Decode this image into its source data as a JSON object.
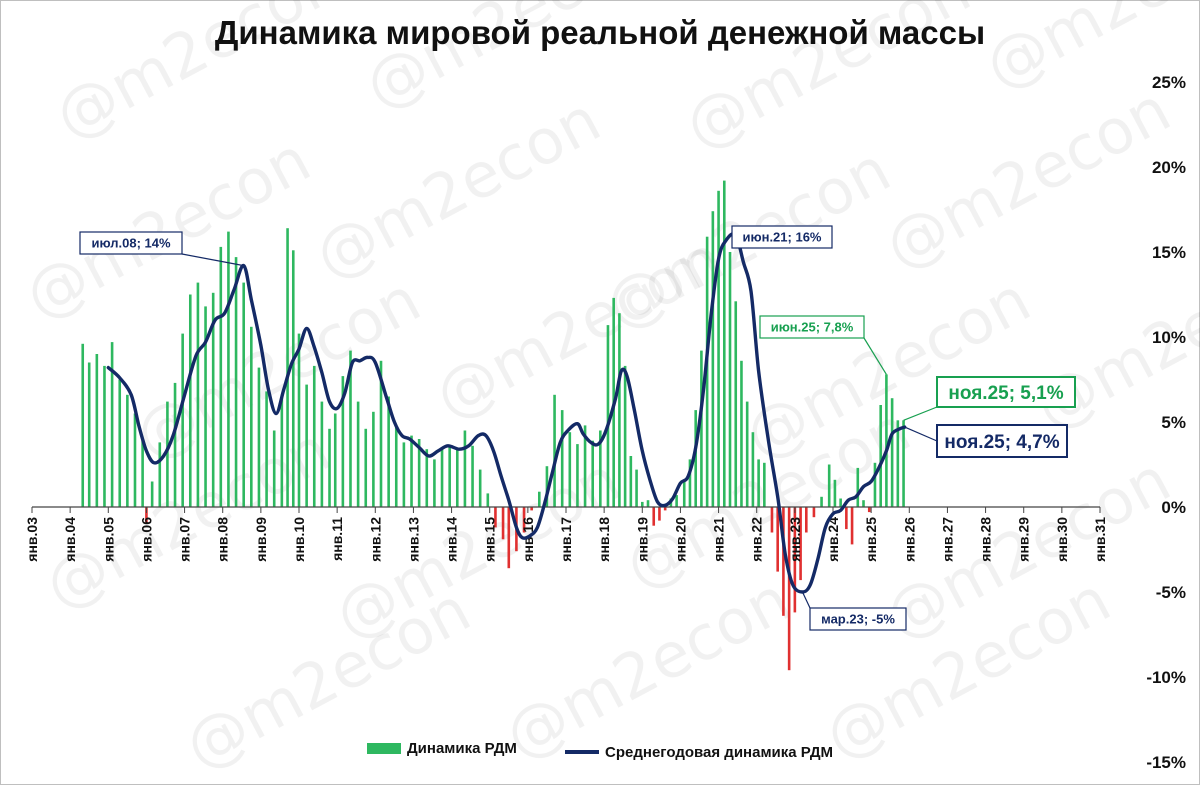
{
  "title": "Динамика мировой реальной денежной массы",
  "watermark": "@m2econ",
  "colors": {
    "bar_positive": "#2eb860",
    "bar_negative": "#e03030",
    "line": "#142a66",
    "callout_green": "#18a050",
    "callout_blue": "#142a66"
  },
  "legend": {
    "bars": "Динамика РДМ",
    "line": "Среднегодовая динамика РДМ"
  },
  "chart_data": {
    "type": "bar",
    "x_ticks": [
      "янв.03",
      "янв.04",
      "янв.05",
      "янв.06",
      "янв.07",
      "янв.08",
      "янв.09",
      "янв.10",
      "янв.11",
      "янв.12",
      "янв.13",
      "янв.14",
      "янв.15",
      "янв.16",
      "янв.17",
      "янв.18",
      "янв.19",
      "янв.20",
      "янв.21",
      "янв.22",
      "янв.23",
      "янв.24",
      "янв.25",
      "янв.26",
      "янв.27",
      "янв.28",
      "янв.29",
      "янв.30",
      "янв.31"
    ],
    "y_ticks": [
      "25%",
      "20%",
      "15%",
      "10%",
      "5%",
      "0%",
      "-5%",
      "-10%",
      "-15%"
    ],
    "ylim": [
      -15,
      25
    ],
    "y_axis_position": "right",
    "series": [
      {
        "name": "Динамика РДМ",
        "type": "bar",
        "points": [
          [
            2004.33,
            9.6
          ],
          [
            2004.5,
            8.5
          ],
          [
            2004.7,
            9.0
          ],
          [
            2004.9,
            8.3
          ],
          [
            2005.1,
            9.7
          ],
          [
            2005.3,
            7.5
          ],
          [
            2005.5,
            6.6
          ],
          [
            2005.7,
            5.5
          ],
          [
            2005.9,
            3.9
          ],
          [
            2006.0,
            -1.0
          ],
          [
            2006.15,
            1.5
          ],
          [
            2006.35,
            3.8
          ],
          [
            2006.55,
            6.2
          ],
          [
            2006.75,
            7.3
          ],
          [
            2006.95,
            10.2
          ],
          [
            2007.15,
            12.5
          ],
          [
            2007.35,
            13.2
          ],
          [
            2007.55,
            11.8
          ],
          [
            2007.75,
            12.6
          ],
          [
            2007.95,
            15.3
          ],
          [
            2008.15,
            16.2
          ],
          [
            2008.35,
            14.7
          ],
          [
            2008.55,
            13.2
          ],
          [
            2008.75,
            10.6
          ],
          [
            2008.95,
            8.2
          ],
          [
            2009.15,
            6.8
          ],
          [
            2009.35,
            4.5
          ],
          [
            2009.55,
            6.6
          ],
          [
            2009.7,
            16.4
          ],
          [
            2009.85,
            15.1
          ],
          [
            2010.0,
            10.2
          ],
          [
            2010.2,
            7.2
          ],
          [
            2010.4,
            8.3
          ],
          [
            2010.6,
            6.2
          ],
          [
            2010.8,
            4.6
          ],
          [
            2010.95,
            5.5
          ],
          [
            2011.15,
            7.7
          ],
          [
            2011.35,
            9.2
          ],
          [
            2011.55,
            6.2
          ],
          [
            2011.75,
            4.6
          ],
          [
            2011.95,
            5.6
          ],
          [
            2012.15,
            8.6
          ],
          [
            2012.35,
            6.5
          ],
          [
            2012.55,
            4.7
          ],
          [
            2012.75,
            3.8
          ],
          [
            2012.95,
            4.2
          ],
          [
            2013.15,
            4.0
          ],
          [
            2013.35,
            3.4
          ],
          [
            2013.55,
            2.8
          ],
          [
            2013.75,
            3.4
          ],
          [
            2013.95,
            3.6
          ],
          [
            2014.15,
            3.5
          ],
          [
            2014.35,
            4.5
          ],
          [
            2014.55,
            3.6
          ],
          [
            2014.75,
            2.2
          ],
          [
            2014.95,
            0.8
          ],
          [
            2015.15,
            -1.2
          ],
          [
            2015.35,
            -1.9
          ],
          [
            2015.5,
            -3.6
          ],
          [
            2015.7,
            -2.6
          ],
          [
            2015.9,
            -1.5
          ],
          [
            2016.1,
            -0.2
          ],
          [
            2016.3,
            0.9
          ],
          [
            2016.5,
            2.4
          ],
          [
            2016.7,
            6.6
          ],
          [
            2016.9,
            5.7
          ],
          [
            2017.1,
            4.4
          ],
          [
            2017.3,
            3.7
          ],
          [
            2017.5,
            4.8
          ],
          [
            2017.7,
            3.9
          ],
          [
            2017.9,
            4.5
          ],
          [
            2018.1,
            10.7
          ],
          [
            2018.25,
            12.3
          ],
          [
            2018.4,
            11.4
          ],
          [
            2018.55,
            8.3
          ],
          [
            2018.7,
            3.0
          ],
          [
            2018.85,
            2.2
          ],
          [
            2019.0,
            0.3
          ],
          [
            2019.15,
            0.4
          ],
          [
            2019.3,
            -1.1
          ],
          [
            2019.45,
            -0.8
          ],
          [
            2019.6,
            -0.2
          ],
          [
            2019.75,
            0.5
          ],
          [
            2019.9,
            0.7
          ],
          [
            2020.1,
            1.5
          ],
          [
            2020.25,
            2.8
          ],
          [
            2020.4,
            5.7
          ],
          [
            2020.55,
            9.2
          ],
          [
            2020.7,
            15.9
          ],
          [
            2020.85,
            17.4
          ],
          [
            2021.0,
            18.6
          ],
          [
            2021.15,
            19.2
          ],
          [
            2021.3,
            15.0
          ],
          [
            2021.45,
            12.1
          ],
          [
            2021.6,
            8.6
          ],
          [
            2021.75,
            6.2
          ],
          [
            2021.9,
            4.4
          ],
          [
            2022.05,
            2.8
          ],
          [
            2022.2,
            2.6
          ],
          [
            2022.4,
            -1.5
          ],
          [
            2022.55,
            -3.8
          ],
          [
            2022.7,
            -6.4
          ],
          [
            2022.85,
            -9.6
          ],
          [
            2023.0,
            -6.2
          ],
          [
            2023.15,
            -4.3
          ],
          [
            2023.3,
            -1.5
          ],
          [
            2023.5,
            -0.6
          ],
          [
            2023.7,
            0.6
          ],
          [
            2023.9,
            2.5
          ],
          [
            2024.05,
            1.6
          ],
          [
            2024.2,
            0.5
          ],
          [
            2024.35,
            -1.3
          ],
          [
            2024.5,
            -2.2
          ],
          [
            2024.65,
            2.3
          ],
          [
            2024.8,
            0.4
          ],
          [
            2024.95,
            -0.3
          ],
          [
            2025.1,
            2.6
          ],
          [
            2025.25,
            6.0
          ],
          [
            2025.4,
            7.8
          ],
          [
            2025.55,
            6.4
          ],
          [
            2025.7,
            5.1
          ],
          [
            2025.85,
            5.1
          ]
        ]
      },
      {
        "name": "Среднегодовая динамика РДМ",
        "type": "line",
        "points": [
          [
            2005.0,
            8.2
          ],
          [
            2005.3,
            7.6
          ],
          [
            2005.6,
            6.6
          ],
          [
            2005.8,
            4.8
          ],
          [
            2006.0,
            3.3
          ],
          [
            2006.2,
            2.6
          ],
          [
            2006.45,
            3.0
          ],
          [
            2006.7,
            4.2
          ],
          [
            2007.0,
            6.6
          ],
          [
            2007.3,
            8.9
          ],
          [
            2007.55,
            9.7
          ],
          [
            2007.8,
            11.0
          ],
          [
            2008.05,
            11.4
          ],
          [
            2008.3,
            12.8
          ],
          [
            2008.55,
            14.2
          ],
          [
            2008.75,
            12.2
          ],
          [
            2009.0,
            9.5
          ],
          [
            2009.2,
            6.9
          ],
          [
            2009.4,
            5.5
          ],
          [
            2009.6,
            6.9
          ],
          [
            2009.8,
            8.4
          ],
          [
            2010.0,
            9.3
          ],
          [
            2010.2,
            10.5
          ],
          [
            2010.4,
            9.4
          ],
          [
            2010.6,
            7.9
          ],
          [
            2010.8,
            6.2
          ],
          [
            2011.0,
            5.8
          ],
          [
            2011.2,
            6.7
          ],
          [
            2011.4,
            8.5
          ],
          [
            2011.6,
            8.6
          ],
          [
            2011.8,
            8.8
          ],
          [
            2012.0,
            8.5
          ],
          [
            2012.3,
            6.4
          ],
          [
            2012.5,
            5.0
          ],
          [
            2012.7,
            4.2
          ],
          [
            2012.9,
            4.0
          ],
          [
            2013.15,
            3.5
          ],
          [
            2013.4,
            3.0
          ],
          [
            2013.65,
            3.3
          ],
          [
            2013.9,
            3.6
          ],
          [
            2014.2,
            3.4
          ],
          [
            2014.45,
            3.6
          ],
          [
            2014.7,
            4.2
          ],
          [
            2014.9,
            4.2
          ],
          [
            2015.1,
            3.3
          ],
          [
            2015.3,
            1.8
          ],
          [
            2015.5,
            0.4
          ],
          [
            2015.7,
            -1.2
          ],
          [
            2015.85,
            -1.8
          ],
          [
            2016.05,
            -1.7
          ],
          [
            2016.25,
            -1.2
          ],
          [
            2016.45,
            0.3
          ],
          [
            2016.65,
            2.1
          ],
          [
            2016.85,
            3.8
          ],
          [
            2017.05,
            4.5
          ],
          [
            2017.3,
            4.9
          ],
          [
            2017.45,
            4.3
          ],
          [
            2017.65,
            3.8
          ],
          [
            2017.85,
            3.7
          ],
          [
            2018.05,
            4.5
          ],
          [
            2018.3,
            6.4
          ],
          [
            2018.45,
            8.0
          ],
          [
            2018.6,
            7.7
          ],
          [
            2018.8,
            5.6
          ],
          [
            2019.0,
            3.3
          ],
          [
            2019.2,
            1.6
          ],
          [
            2019.4,
            0.3
          ],
          [
            2019.6,
            0.1
          ],
          [
            2019.8,
            0.5
          ],
          [
            2020.0,
            1.4
          ],
          [
            2020.2,
            1.8
          ],
          [
            2020.4,
            3.5
          ],
          [
            2020.6,
            6.8
          ],
          [
            2020.8,
            11.2
          ],
          [
            2021.0,
            14.6
          ],
          [
            2021.2,
            15.7
          ],
          [
            2021.45,
            16.0
          ],
          [
            2021.65,
            14.4
          ],
          [
            2021.85,
            12.7
          ],
          [
            2022.05,
            8.0
          ],
          [
            2022.3,
            4.0
          ],
          [
            2022.55,
            0.6
          ],
          [
            2022.75,
            -2.8
          ],
          [
            2022.95,
            -4.6
          ],
          [
            2023.2,
            -5.0
          ],
          [
            2023.4,
            -4.6
          ],
          [
            2023.6,
            -3.1
          ],
          [
            2023.8,
            -1.2
          ],
          [
            2024.0,
            -0.4
          ],
          [
            2024.2,
            -0.2
          ],
          [
            2024.4,
            0.4
          ],
          [
            2024.6,
            0.6
          ],
          [
            2024.8,
            1.2
          ],
          [
            2025.0,
            1.5
          ],
          [
            2025.2,
            2.3
          ],
          [
            2025.4,
            3.3
          ],
          [
            2025.55,
            4.3
          ],
          [
            2025.75,
            4.6
          ],
          [
            2025.88,
            4.7
          ]
        ]
      }
    ],
    "annotations": [
      {
        "text": "июл.08; 14%",
        "x": 2008.55,
        "y": 14.2,
        "color": "blue",
        "size": "small"
      },
      {
        "text": "июн.21; 16%",
        "x": 2021.45,
        "y": 16.0,
        "color": "blue",
        "size": "small"
      },
      {
        "text": "июн.25; 7,8%",
        "x": 2025.4,
        "y": 7.8,
        "color": "green",
        "size": "small"
      },
      {
        "text": "ноя.25; 5,1%",
        "x": 2025.85,
        "y": 5.1,
        "color": "green",
        "size": "large"
      },
      {
        "text": "ноя.25; 4,7%",
        "x": 2025.88,
        "y": 4.7,
        "color": "blue",
        "size": "large"
      },
      {
        "text": "мар.23; -5%",
        "x": 2023.2,
        "y": -5.0,
        "color": "blue",
        "size": "small"
      }
    ]
  }
}
